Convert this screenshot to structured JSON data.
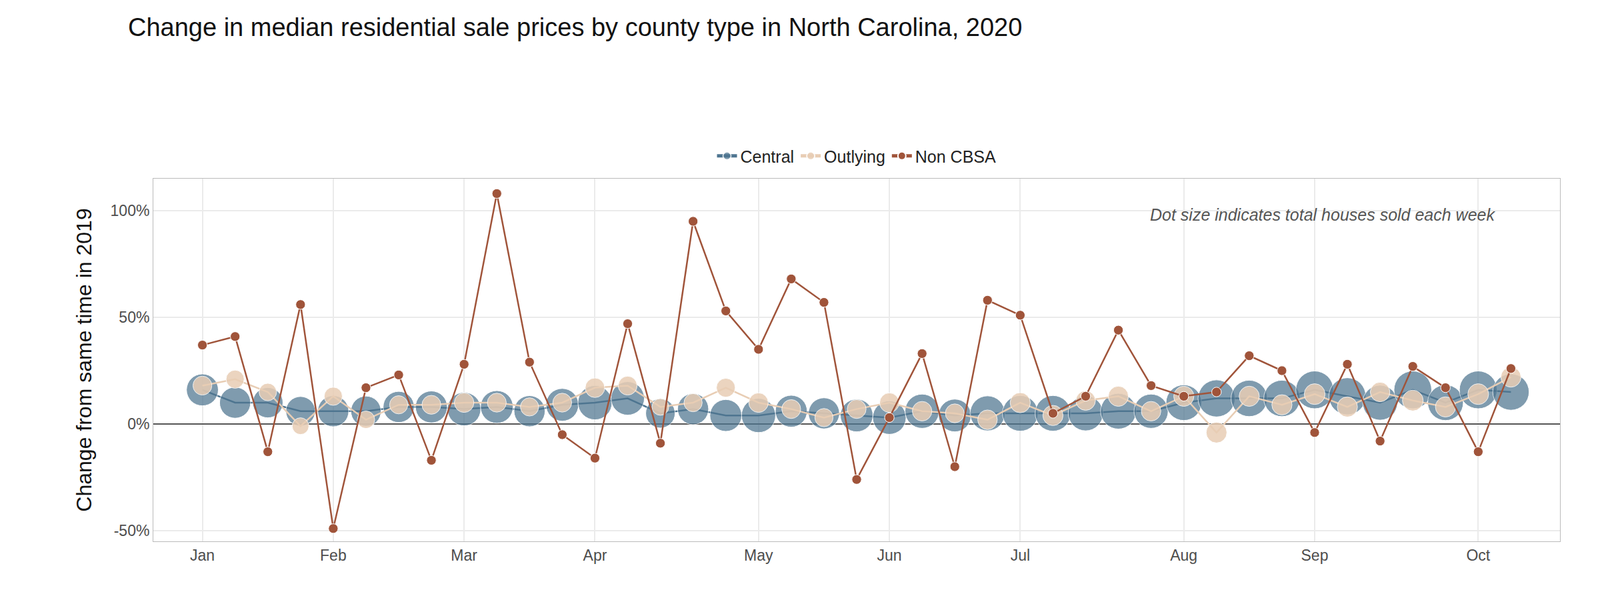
{
  "chart_data": {
    "type": "line",
    "title": "Change in median residential sale prices by county type in North Carolina, 2020",
    "y_label": "Change from same time in 2019",
    "annotation": "Dot size indicates total houses sold each week",
    "categories": [
      "Jan",
      null,
      null,
      null,
      "Feb",
      null,
      null,
      null,
      "Mar",
      null,
      null,
      null,
      "Apr",
      null,
      null,
      null,
      null,
      "May",
      null,
      null,
      null,
      "Jun",
      null,
      null,
      null,
      "Jul",
      null,
      null,
      null,
      null,
      "Aug",
      null,
      null,
      null,
      "Sep",
      null,
      null,
      null,
      null,
      "Oct",
      null
    ],
    "series": [
      {
        "name": "Central",
        "color": "#4e7590",
        "marker": "circle",
        "line_style": "solid",
        "values": [
          16,
          10,
          10,
          6,
          6,
          6,
          8,
          8,
          7,
          8,
          6,
          9,
          10,
          12,
          5,
          7,
          4,
          4,
          6,
          5,
          4,
          3,
          6,
          4,
          5,
          5,
          5,
          5,
          6,
          6,
          10,
          12,
          12,
          12,
          16,
          13,
          10,
          16,
          10,
          16,
          15
        ],
        "sizes": [
          2000,
          1900,
          1800,
          1700,
          1900,
          1800,
          1900,
          2000,
          2200,
          2100,
          1900,
          2100,
          2300,
          2200,
          1700,
          1900,
          2000,
          2300,
          2000,
          1900,
          2100,
          2200,
          2300,
          2100,
          2400,
          2500,
          2500,
          2400,
          2500,
          2300,
          2500,
          2700,
          2600,
          2600,
          2800,
          2700,
          2400,
          2800,
          2500,
          2800,
          2600
        ]
      },
      {
        "name": "Outlying",
        "color": "#e8cdb4",
        "marker": "circle",
        "line_style": "solid",
        "values": [
          18,
          21,
          15,
          -1,
          13,
          2,
          9,
          9,
          10,
          10,
          8,
          10,
          17,
          18,
          8,
          10,
          17,
          10,
          7,
          3,
          7,
          10,
          6,
          5,
          2,
          10,
          4,
          11,
          13,
          6,
          13,
          -4,
          13,
          9,
          14,
          8,
          15,
          11,
          8,
          14,
          22
        ],
        "sizes": [
          700,
          650,
          600,
          550,
          650,
          600,
          650,
          700,
          750,
          700,
          650,
          700,
          750,
          700,
          550,
          650,
          700,
          750,
          700,
          650,
          700,
          750,
          750,
          700,
          750,
          800,
          800,
          750,
          800,
          750,
          800,
          850,
          800,
          800,
          850,
          800,
          750,
          850,
          800,
          850,
          800
        ]
      },
      {
        "name": "Non CBSA",
        "color": "#a0543a",
        "marker": "circle",
        "line_style": "solid",
        "values": [
          37,
          41,
          -13,
          56,
          -49,
          17,
          23,
          -17,
          28,
          108,
          29,
          -5,
          -16,
          47,
          -9,
          95,
          53,
          35,
          68,
          57,
          -26,
          3,
          33,
          -20,
          58,
          51,
          5,
          13,
          44,
          18,
          13,
          15,
          32,
          25,
          -4,
          28,
          -8,
          27,
          17,
          -13,
          26
        ],
        "sizes": [
          180,
          180,
          180,
          180,
          180,
          180,
          180,
          180,
          180,
          180,
          180,
          180,
          180,
          180,
          180,
          180,
          180,
          180,
          180,
          180,
          180,
          180,
          180,
          180,
          180,
          180,
          180,
          180,
          180,
          180,
          180,
          180,
          180,
          180,
          180,
          180,
          180,
          180,
          180,
          180,
          180
        ]
      }
    ],
    "ylim": [
      -55,
      115
    ],
    "yticks": [
      {
        "value": -50,
        "label": "-50%"
      },
      {
        "value": 0,
        "label": "0%"
      },
      {
        "value": 50,
        "label": "50%"
      },
      {
        "value": 100,
        "label": "100%"
      }
    ],
    "grid": true,
    "legend": "top"
  }
}
